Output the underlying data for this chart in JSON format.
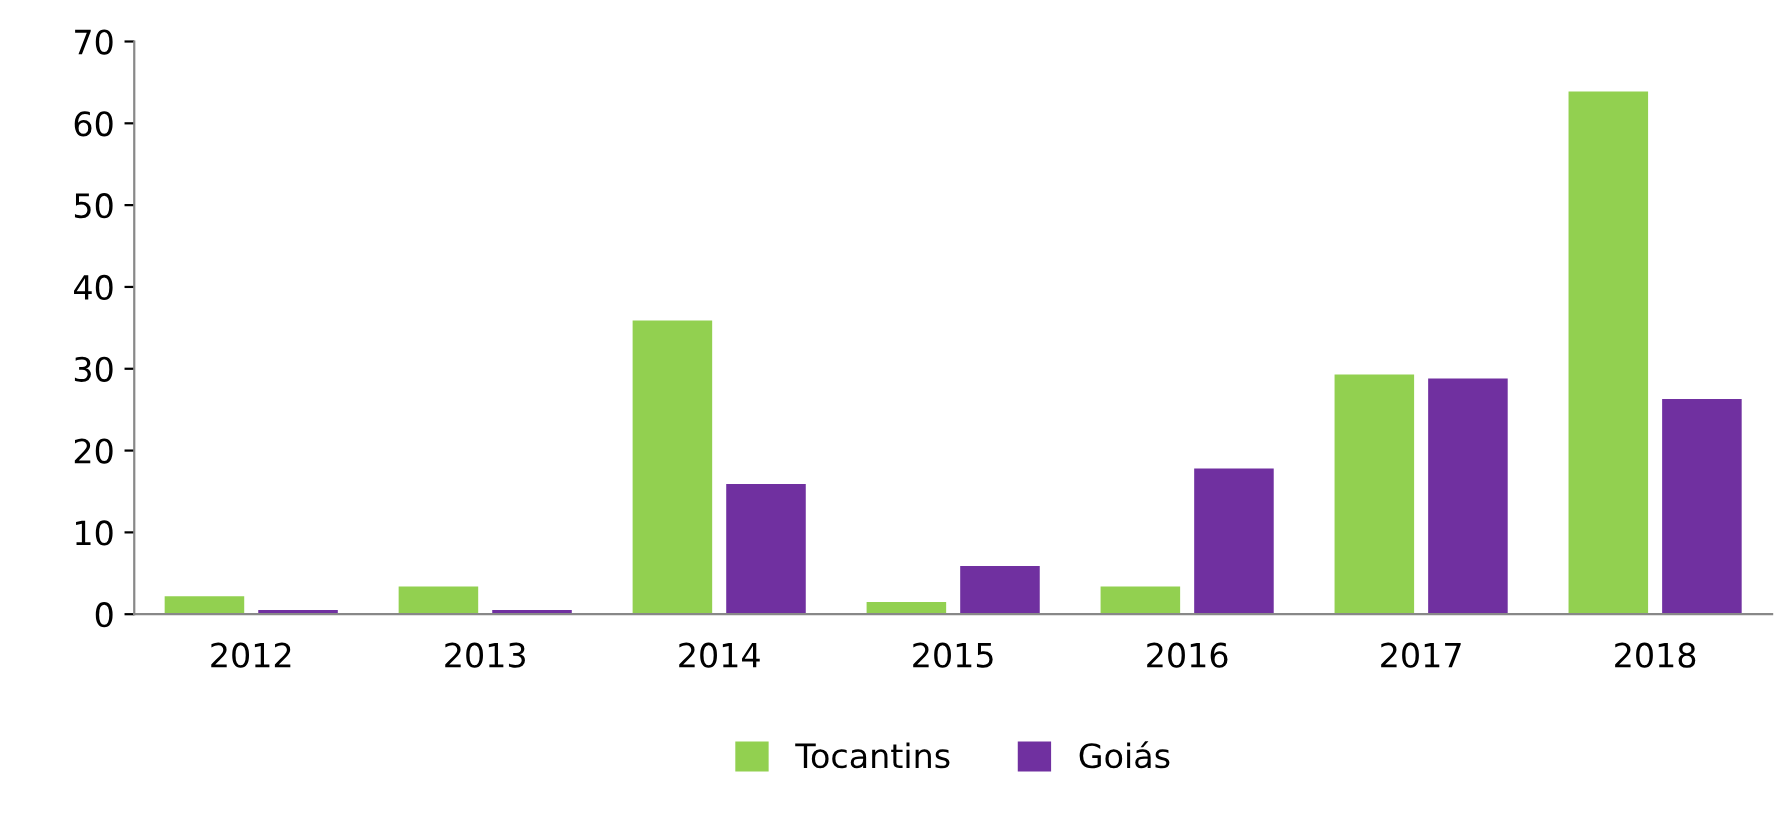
{
  "chart_data": {
    "type": "bar",
    "categories": [
      "2012",
      "2013",
      "2014",
      "2015",
      "2016",
      "2017",
      "2018"
    ],
    "series": [
      {
        "name": "Tocantins",
        "color": "#92d050",
        "values": [
          2.2,
          3.4,
          35.9,
          1.5,
          3.4,
          29.3,
          63.9
        ]
      },
      {
        "name": "Goiás",
        "color": "#7030a0",
        "values": [
          0.5,
          0.5,
          15.9,
          5.9,
          17.8,
          28.8,
          26.3
        ]
      }
    ],
    "ylim": [
      0,
      70
    ],
    "yticks": [
      0,
      10,
      20,
      30,
      40,
      50,
      60,
      70
    ],
    "grid": false,
    "legend": "bottom"
  }
}
